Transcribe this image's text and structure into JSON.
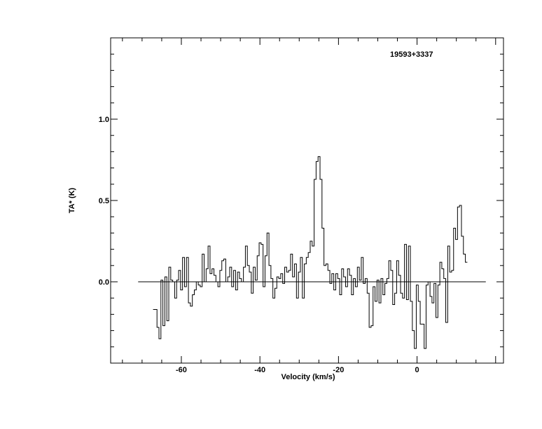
{
  "chart_data": {
    "type": "line",
    "step": true,
    "annotation": "19593+3337",
    "xlabel": "Velocity (km/s)",
    "ylabel": "TA* (K)",
    "xlim": [
      -78,
      22
    ],
    "ylim": [
      -0.5,
      1.5
    ],
    "x_ticks": [
      -60,
      -40,
      -20,
      0
    ],
    "y_ticks": [
      0.0,
      0.5,
      1.0
    ],
    "x_tick_labels": [
      "-60",
      "-40",
      "-20",
      "0"
    ],
    "y_tick_labels": [
      "0.0",
      "0.5",
      "1.0"
    ],
    "baseline": {
      "y": 0.0,
      "x_start": -71,
      "x_end": 17.5
    },
    "series": [
      {
        "x_start": -67.2,
        "x_step": 0.5,
        "values": [
          -0.17,
          -0.17,
          -0.28,
          -0.35,
          0.01,
          -0.27,
          0.03,
          -0.24,
          0.09,
          0.01,
          0.0,
          -0.1,
          0.01,
          0.07,
          -0.05,
          0.15,
          -0.03,
          0.15,
          -0.13,
          -0.15,
          -0.08,
          -0.05,
          0.0,
          -0.02,
          -0.03,
          0.17,
          0.0,
          0.08,
          0.22,
          0.05,
          0.08,
          0.04,
          0.0,
          -0.03,
          0.07,
          0.13,
          0.14,
          0.0,
          0.03,
          0.09,
          -0.03,
          0.07,
          -0.05,
          0.06,
          0.02,
          0.0,
          0.09,
          0.22,
          0.1,
          0.06,
          -0.07,
          0.09,
          0.01,
          0.16,
          0.24,
          0.23,
          -0.03,
          0.16,
          0.3,
          0.1,
          0.02,
          -0.1,
          -0.04,
          0.03,
          0.02,
          0.05,
          -0.01,
          0.09,
          0.06,
          0.07,
          0.17,
          0.03,
          0.11,
          -0.1,
          0.06,
          0.15,
          -0.1,
          0.11,
          0.15,
          0.18,
          0.25,
          0.22,
          0.63,
          0.74,
          0.77,
          0.63,
          0.33,
          0.1,
          0.11,
          0.07,
          -0.01,
          0.05,
          -0.05,
          0.05,
          0.02,
          -0.08,
          0.08,
          0.03,
          -0.03,
          0.08,
          0.04,
          -0.08,
          0.02,
          -0.03,
          0.09,
          0.01,
          0.15,
          -0.01,
          0.02,
          -0.07,
          -0.28,
          -0.27,
          -0.03,
          -0.12,
          0.01,
          -0.13,
          0.02,
          -0.08,
          -0.01,
          0.02,
          0.13,
          0.07,
          -0.14,
          -0.07,
          0.13,
          0.04,
          -0.07,
          -0.1,
          0.23,
          -0.11,
          0.22,
          -0.12,
          -0.3,
          -0.41,
          -0.02,
          -0.12,
          -0.26,
          -0.26,
          -0.41,
          -0.02,
          0.0,
          -0.09,
          -0.13,
          -0.01,
          -0.22,
          -0.02,
          0.12,
          0.08,
          0.02,
          -0.25,
          0.22,
          0.06,
          0.07,
          0.33,
          0.26,
          0.46,
          0.47,
          0.28,
          0.17,
          0.12
        ]
      }
    ]
  }
}
